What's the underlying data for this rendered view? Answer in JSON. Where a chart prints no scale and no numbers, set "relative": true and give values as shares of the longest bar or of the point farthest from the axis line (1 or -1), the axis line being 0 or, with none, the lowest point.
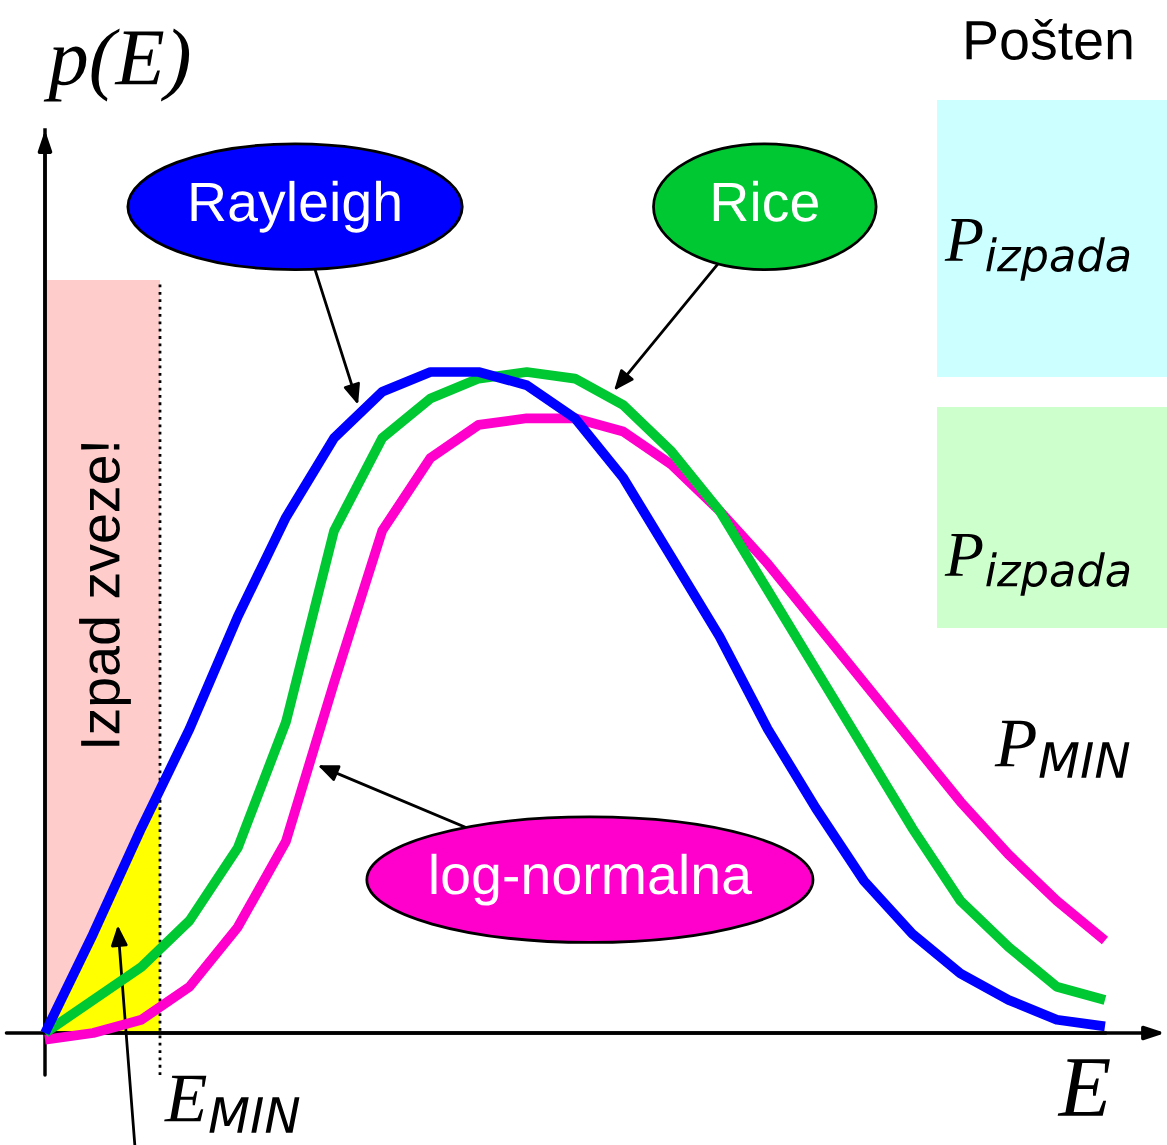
{
  "chart_data": {
    "type": "line",
    "relative": true,
    "xlabel": "E",
    "ylabel": "p(E)",
    "categories": [
      null,
      null,
      null,
      null,
      null,
      null,
      null,
      null,
      null,
      null,
      null,
      null,
      null,
      null,
      null,
      null,
      null,
      null,
      null,
      null,
      null,
      null,
      null
    ],
    "series": [
      {
        "name": "Rayleigh",
        "color": "#0000ff",
        "values": [
          0,
          0.15,
          0.31,
          0.46,
          0.63,
          0.78,
          0.9,
          0.97,
          1.0,
          1.0,
          0.98,
          0.93,
          0.84,
          0.72,
          0.6,
          0.46,
          0.34,
          0.23,
          0.15,
          0.09,
          0.05,
          0.02,
          0.01
        ]
      },
      {
        "name": "Rice",
        "color": "#00c832",
        "values": [
          0,
          0.05,
          0.1,
          0.17,
          0.28,
          0.47,
          0.76,
          0.9,
          0.96,
          0.99,
          1.0,
          0.99,
          0.95,
          0.88,
          0.79,
          0.67,
          0.55,
          0.43,
          0.31,
          0.2,
          0.13,
          0.07,
          0.05
        ]
      },
      {
        "name": "log-normalna",
        "color": "#ff00cc",
        "values": [
          -0.01,
          0,
          0.02,
          0.07,
          0.16,
          0.29,
          0.53,
          0.76,
          0.87,
          0.92,
          0.93,
          0.93,
          0.91,
          0.86,
          0.79,
          0.71,
          0.62,
          0.53,
          0.44,
          0.35,
          0.27,
          0.2,
          0.14
        ]
      }
    ],
    "annotations": [
      "Pošten",
      "P$_{izpada}$",
      "P$_{izpada}$",
      "P$_{MIN}$",
      "Izpad zveze!",
      "E$_{MIN}$"
    ]
  }
}
